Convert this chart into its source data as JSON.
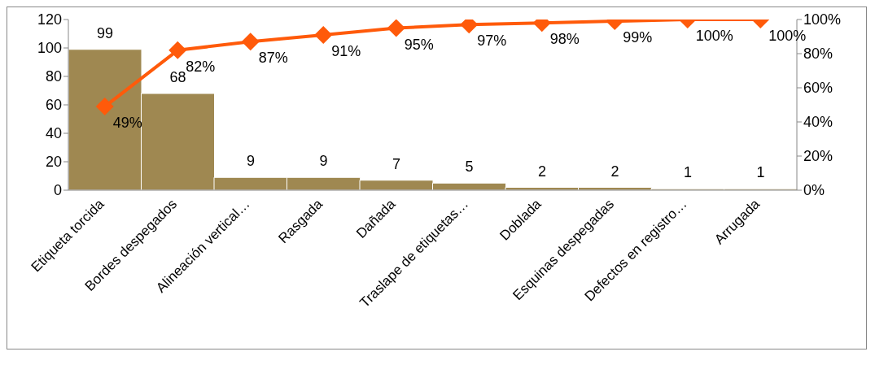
{
  "chart_data": {
    "type": "bar",
    "categories": [
      "Etiqueta torcida",
      "Bordes despegados",
      "Alineación vertical…",
      "Rasgada",
      "Dañada",
      "Traslape de etiquetas…",
      "Doblada",
      "Esquinas despegadas",
      "Defectos en registro…",
      "Arrugada"
    ],
    "series": [
      {
        "color": "#9f8851",
        "values": [
          99,
          68,
          9,
          9,
          7,
          5,
          2,
          2,
          1,
          1
        ],
        "value_labels": [
          "99",
          "68",
          "9",
          "9",
          "7",
          "5",
          "2",
          "2",
          "1",
          "1"
        ]
      },
      {
        "type": "line",
        "axis": "y2",
        "color": "#ff5a0a",
        "values": [
          49,
          82,
          87,
          91,
          95,
          97,
          98,
          99,
          100,
          100
        ],
        "value_labels": [
          "49%",
          "82%",
          "87%",
          "91%",
          "95%",
          "97%",
          "98%",
          "99%",
          "100%",
          "100%"
        ],
        "marker": "diamond"
      }
    ],
    "ylim": [
      0,
      120
    ],
    "yticks": [
      0,
      20,
      40,
      60,
      80,
      100,
      120
    ],
    "y2lim": [
      0,
      100
    ],
    "y2ticks": [
      {
        "value": 0,
        "label": "0%"
      },
      {
        "value": 20,
        "label": "20%"
      },
      {
        "value": 40,
        "label": "40%"
      },
      {
        "value": 60,
        "label": "60%"
      },
      {
        "value": 80,
        "label": "80%"
      },
      {
        "value": 100,
        "label": "100%"
      }
    ],
    "grid": false,
    "legend": false
  }
}
